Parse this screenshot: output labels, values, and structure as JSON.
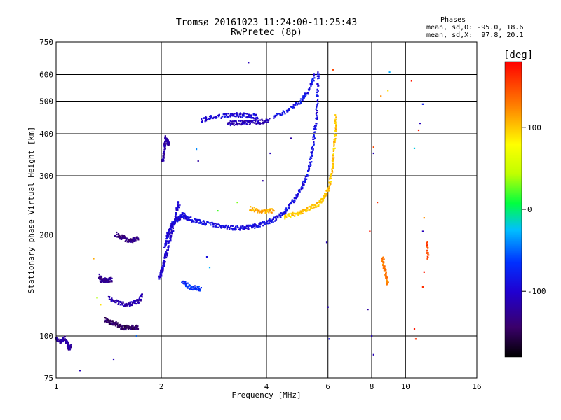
{
  "header": {
    "title": "Tromsø 20161023 11:24:00-11:25:43",
    "subtitle": "RwPretec (8p)",
    "phases_label": "Phases",
    "phases_o": "mean, sd,O: -95.0, 18.6",
    "phases_x": "mean, sd,X:  97.8, 20.1"
  },
  "colorbar": {
    "unit_label": "[deg]",
    "ticks": [
      "100",
      "0",
      "-100"
    ],
    "tick_values": [
      100,
      0,
      -100
    ],
    "range": [
      -180,
      180
    ]
  },
  "chart_data": {
    "type": "scatter",
    "xlabel": "Frequency [MHz]",
    "ylabel": "Stationary phase Virtual Height [km]",
    "x_scale": "log",
    "y_scale": "log",
    "xlim": [
      1,
      16
    ],
    "ylim": [
      75,
      750
    ],
    "x_ticks": [
      1,
      2,
      4,
      6,
      8,
      10,
      16
    ],
    "x_tick_labels": [
      "1",
      "2",
      "4",
      "6",
      "8",
      "10",
      "16"
    ],
    "y_ticks": [
      75,
      100,
      200,
      300,
      400,
      500,
      600,
      750
    ],
    "y_tick_labels": [
      "75",
      "100",
      "200",
      "300",
      "400",
      "500",
      "600",
      "750"
    ],
    "grid": true,
    "traces": [
      {
        "x": [
          1.0,
          1.03,
          1.06,
          1.08,
          1.09,
          1.1
        ],
        "y": [
          98,
          96,
          99,
          94,
          92,
          93
        ],
        "phase": -120
      },
      {
        "x": [
          1.33,
          1.35,
          1.38,
          1.4,
          1.42,
          1.44
        ],
        "y": [
          151,
          146,
          147,
          146,
          147,
          147
        ],
        "phase": -125
      },
      {
        "x": [
          1.42,
          1.5,
          1.58,
          1.66,
          1.72,
          1.77
        ],
        "y": [
          130,
          126,
          124,
          125,
          127,
          133
        ],
        "phase": -115
      },
      {
        "x": [
          1.38,
          1.42,
          1.47,
          1.52,
          1.56,
          1.6,
          1.66,
          1.72
        ],
        "y": [
          112,
          110,
          109,
          107,
          106,
          106,
          106,
          106
        ],
        "phase": -145
      },
      {
        "x": [
          1.48,
          1.54,
          1.6,
          1.66,
          1.72
        ],
        "y": [
          201,
          197,
          193,
          193,
          195
        ],
        "phase": -135
      },
      {
        "x": [
          1.98,
          2.0,
          2.02,
          2.05,
          2.08,
          2.12,
          2.16,
          2.2,
          2.25
        ],
        "y": [
          150,
          155,
          160,
          170,
          180,
          195,
          210,
          230,
          250
        ],
        "phase": -100
      },
      {
        "x": [
          2.05,
          2.08,
          2.1,
          2.15,
          2.2,
          2.25,
          2.3,
          2.4
        ],
        "y": [
          185,
          195,
          205,
          215,
          220,
          225,
          230,
          220
        ],
        "phase": -95
      },
      {
        "x": [
          2.3,
          2.45,
          2.6,
          2.8,
          3.0,
          3.2,
          3.4,
          3.6,
          3.8,
          4.0,
          4.2,
          4.4,
          4.6,
          4.8,
          5.0,
          5.2,
          5.35,
          5.45,
          5.55,
          5.6,
          5.63
        ],
        "y": [
          230,
          222,
          218,
          215,
          212,
          210,
          210,
          211,
          214,
          218,
          222,
          230,
          240,
          255,
          272,
          295,
          330,
          380,
          440,
          520,
          620
        ],
        "phase": -90
      },
      {
        "x": [
          3.6,
          3.8,
          4.0,
          4.2
        ],
        "y": [
          240,
          236,
          235,
          237
        ],
        "phase": 110
      },
      {
        "x": [
          4.5,
          4.8,
          5.1,
          5.4,
          5.7,
          5.9,
          6.05,
          6.15,
          6.22,
          6.28,
          6.32
        ],
        "y": [
          226,
          230,
          235,
          242,
          250,
          262,
          280,
          305,
          340,
          390,
          460
        ],
        "phase": 100
      },
      {
        "x": [
          2.6,
          2.8,
          3.0,
          3.2,
          3.4,
          3.6,
          3.8
        ],
        "y": [
          440,
          448,
          452,
          455,
          455,
          452,
          450
        ],
        "phase": -95
      },
      {
        "x": [
          3.1,
          3.3,
          3.5,
          3.7,
          3.9,
          4.1
        ],
        "y": [
          430,
          431,
          432,
          433,
          435,
          440
        ],
        "phase": -110
      },
      {
        "x": [
          4.2,
          4.6,
          5.0,
          5.3,
          5.5
        ],
        "y": [
          450,
          470,
          500,
          540,
          600
        ],
        "phase": -85
      },
      {
        "x": [
          2.3,
          2.4,
          2.5,
          2.6
        ],
        "y": [
          145,
          140,
          139,
          138
        ],
        "phase": -70
      },
      {
        "x": [
          2.02,
          2.04,
          2.06,
          2.08,
          2.1
        ],
        "y": [
          330,
          360,
          390,
          380,
          370
        ],
        "phase": -120
      },
      {
        "x": [
          8.6,
          8.7,
          8.8,
          8.9
        ],
        "y": [
          170,
          160,
          150,
          142
        ],
        "phase": 130
      },
      {
        "x": [
          11.5,
          11.6
        ],
        "y": [
          190,
          170
        ],
        "phase": 150
      }
    ],
    "markers": [
      {
        "x": 3.55,
        "y": 652,
        "phase": -110
      },
      {
        "x": 6.2,
        "y": 620,
        "phase": 150
      },
      {
        "x": 8.5,
        "y": 518,
        "phase": 120
      },
      {
        "x": 8.9,
        "y": 538,
        "phase": 90
      },
      {
        "x": 9.0,
        "y": 610,
        "phase": -30
      },
      {
        "x": 10.4,
        "y": 575,
        "phase": 170
      },
      {
        "x": 11.2,
        "y": 490,
        "phase": -80
      },
      {
        "x": 10.9,
        "y": 410,
        "phase": 170
      },
      {
        "x": 11.0,
        "y": 430,
        "phase": -110
      },
      {
        "x": 10.6,
        "y": 362,
        "phase": -20
      },
      {
        "x": 8.1,
        "y": 365,
        "phase": 150
      },
      {
        "x": 8.1,
        "y": 350,
        "phase": -110
      },
      {
        "x": 7.9,
        "y": 205,
        "phase": 170
      },
      {
        "x": 8.3,
        "y": 250,
        "phase": 160
      },
      {
        "x": 11.3,
        "y": 225,
        "phase": 120
      },
      {
        "x": 11.2,
        "y": 205,
        "phase": -110
      },
      {
        "x": 6.0,
        "y": 122,
        "phase": -110
      },
      {
        "x": 7.8,
        "y": 120,
        "phase": -120
      },
      {
        "x": 8.0,
        "y": 100,
        "phase": -110
      },
      {
        "x": 8.1,
        "y": 88,
        "phase": -110
      },
      {
        "x": 6.05,
        "y": 98,
        "phase": -90
      },
      {
        "x": 10.6,
        "y": 105,
        "phase": 170
      },
      {
        "x": 10.7,
        "y": 98,
        "phase": 160
      },
      {
        "x": 11.3,
        "y": 155,
        "phase": 170
      },
      {
        "x": 11.2,
        "y": 140,
        "phase": 160
      },
      {
        "x": 1.17,
        "y": 79,
        "phase": -110
      },
      {
        "x": 1.46,
        "y": 85,
        "phase": -110
      },
      {
        "x": 1.28,
        "y": 170,
        "phase": 110
      },
      {
        "x": 1.31,
        "y": 130,
        "phase": 40
      },
      {
        "x": 1.34,
        "y": 124,
        "phase": 90
      },
      {
        "x": 1.7,
        "y": 100,
        "phase": -50
      },
      {
        "x": 2.52,
        "y": 360,
        "phase": -40
      },
      {
        "x": 2.55,
        "y": 332,
        "phase": -120
      },
      {
        "x": 3.9,
        "y": 290,
        "phase": -120
      },
      {
        "x": 4.1,
        "y": 350,
        "phase": -110
      },
      {
        "x": 4.7,
        "y": 388,
        "phase": -120
      },
      {
        "x": 5.95,
        "y": 190,
        "phase": -110
      },
      {
        "x": 2.7,
        "y": 172,
        "phase": -90
      },
      {
        "x": 2.75,
        "y": 160,
        "phase": -30
      },
      {
        "x": 2.9,
        "y": 236,
        "phase": 20
      },
      {
        "x": 3.3,
        "y": 250,
        "phase": 30
      }
    ]
  }
}
